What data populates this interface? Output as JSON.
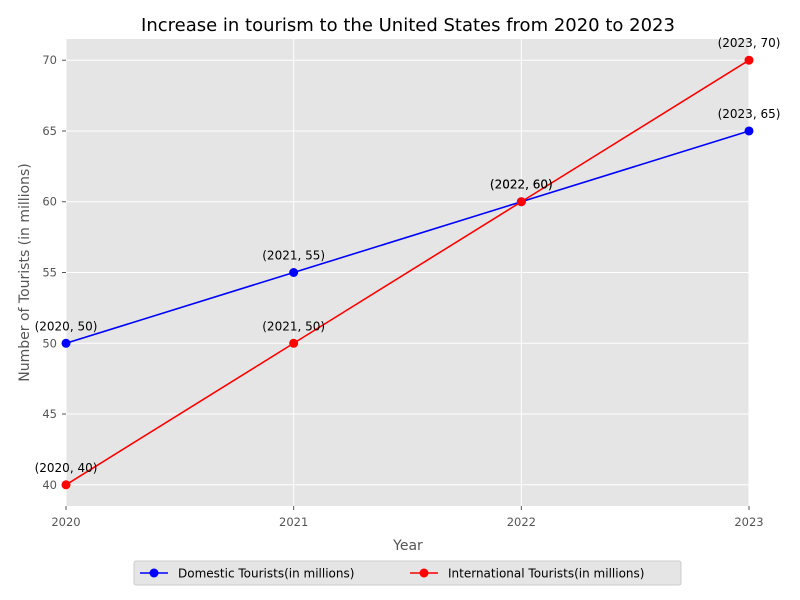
{
  "chart_data": {
    "type": "line",
    "title": "Increase in tourism to the United States from 2020 to 2023",
    "xlabel": "Year",
    "ylabel": "Number of Tourists (in millions)",
    "x": [
      2020,
      2021,
      2022,
      2023
    ],
    "x_tick_labels": [
      "2020",
      "2021",
      "2022",
      "2023"
    ],
    "y_ticks": [
      40,
      45,
      50,
      55,
      60,
      65,
      70
    ],
    "y_tick_labels": [
      "40",
      "45",
      "50",
      "55",
      "60",
      "65",
      "70"
    ],
    "xlim": [
      2020,
      2023
    ],
    "ylim": [
      38.5,
      71.5
    ],
    "grid": true,
    "legend_placement": "bottom-center",
    "series": [
      {
        "name": "Domestic Tourists(in millions)",
        "color": "#0000ff",
        "values": [
          50,
          55,
          60,
          65
        ],
        "labels": [
          "(2020, 50)",
          "(2021, 55)",
          "(2022, 60)",
          "(2023, 65)"
        ]
      },
      {
        "name": "International Tourists(in millions)",
        "color": "#ff0000",
        "values": [
          40,
          50,
          60,
          70
        ],
        "labels": [
          "(2020, 40)",
          "(2021, 50)",
          "(2022, 60)",
          "(2023, 70)"
        ]
      }
    ],
    "plot_background": "#e5e5e5",
    "grid_color": "#ffffff"
  }
}
